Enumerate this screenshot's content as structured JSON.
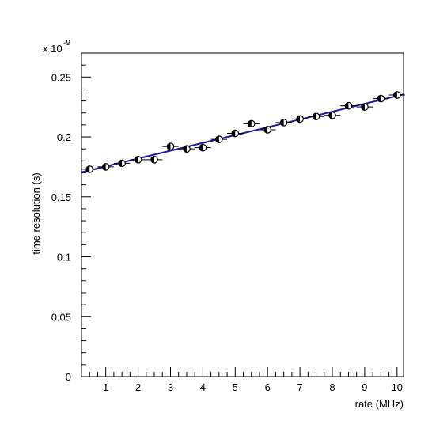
{
  "chart_data": {
    "type": "scatter",
    "title": "",
    "xlabel": "rate (MHz)",
    "ylabel": "time resolution (s)",
    "y_multiplier": {
      "base": "x 10",
      "exponent": "-9"
    },
    "xlim": [
      0.25,
      10.2
    ],
    "ylim": [
      0,
      0.27
    ],
    "x_ticks": [
      {
        "value": 1,
        "label": "1"
      },
      {
        "value": 2,
        "label": "2"
      },
      {
        "value": 3,
        "label": "3"
      },
      {
        "value": 4,
        "label": "4"
      },
      {
        "value": 5,
        "label": "5"
      },
      {
        "value": 6,
        "label": "6"
      },
      {
        "value": 7,
        "label": "7"
      },
      {
        "value": 8,
        "label": "8"
      },
      {
        "value": 9,
        "label": "9"
      },
      {
        "value": 10,
        "label": "10"
      }
    ],
    "y_ticks": [
      {
        "value": 0,
        "label": "0"
      },
      {
        "value": 0.05,
        "label": "0.05"
      },
      {
        "value": 0.1,
        "label": "0.1"
      },
      {
        "value": 0.15,
        "label": "0.15"
      },
      {
        "value": 0.2,
        "label": "0.2"
      },
      {
        "value": 0.25,
        "label": "0.25"
      }
    ],
    "grid": false,
    "legend": "none",
    "points": [
      {
        "x": 0.5,
        "y": 0.173
      },
      {
        "x": 1.0,
        "y": 0.175
      },
      {
        "x": 1.5,
        "y": 0.178
      },
      {
        "x": 2.0,
        "y": 0.181
      },
      {
        "x": 2.5,
        "y": 0.181
      },
      {
        "x": 3.0,
        "y": 0.192
      },
      {
        "x": 3.5,
        "y": 0.19
      },
      {
        "x": 4.0,
        "y": 0.191
      },
      {
        "x": 4.5,
        "y": 0.198
      },
      {
        "x": 5.0,
        "y": 0.203
      },
      {
        "x": 5.5,
        "y": 0.211
      },
      {
        "x": 6.0,
        "y": 0.206
      },
      {
        "x": 6.5,
        "y": 0.212
      },
      {
        "x": 7.0,
        "y": 0.215
      },
      {
        "x": 7.5,
        "y": 0.217
      },
      {
        "x": 8.0,
        "y": 0.218
      },
      {
        "x": 8.5,
        "y": 0.226
      },
      {
        "x": 9.0,
        "y": 0.225
      },
      {
        "x": 9.5,
        "y": 0.232
      },
      {
        "x": 10.0,
        "y": 0.235
      }
    ],
    "x_error": 0.25,
    "fit_line": {
      "x": [
        0.25,
        10.2
      ],
      "y": [
        0.1705,
        0.2355
      ]
    },
    "colors": {
      "marker": "#000000",
      "fit": "#1a1aa6",
      "axis": "#000000"
    }
  }
}
